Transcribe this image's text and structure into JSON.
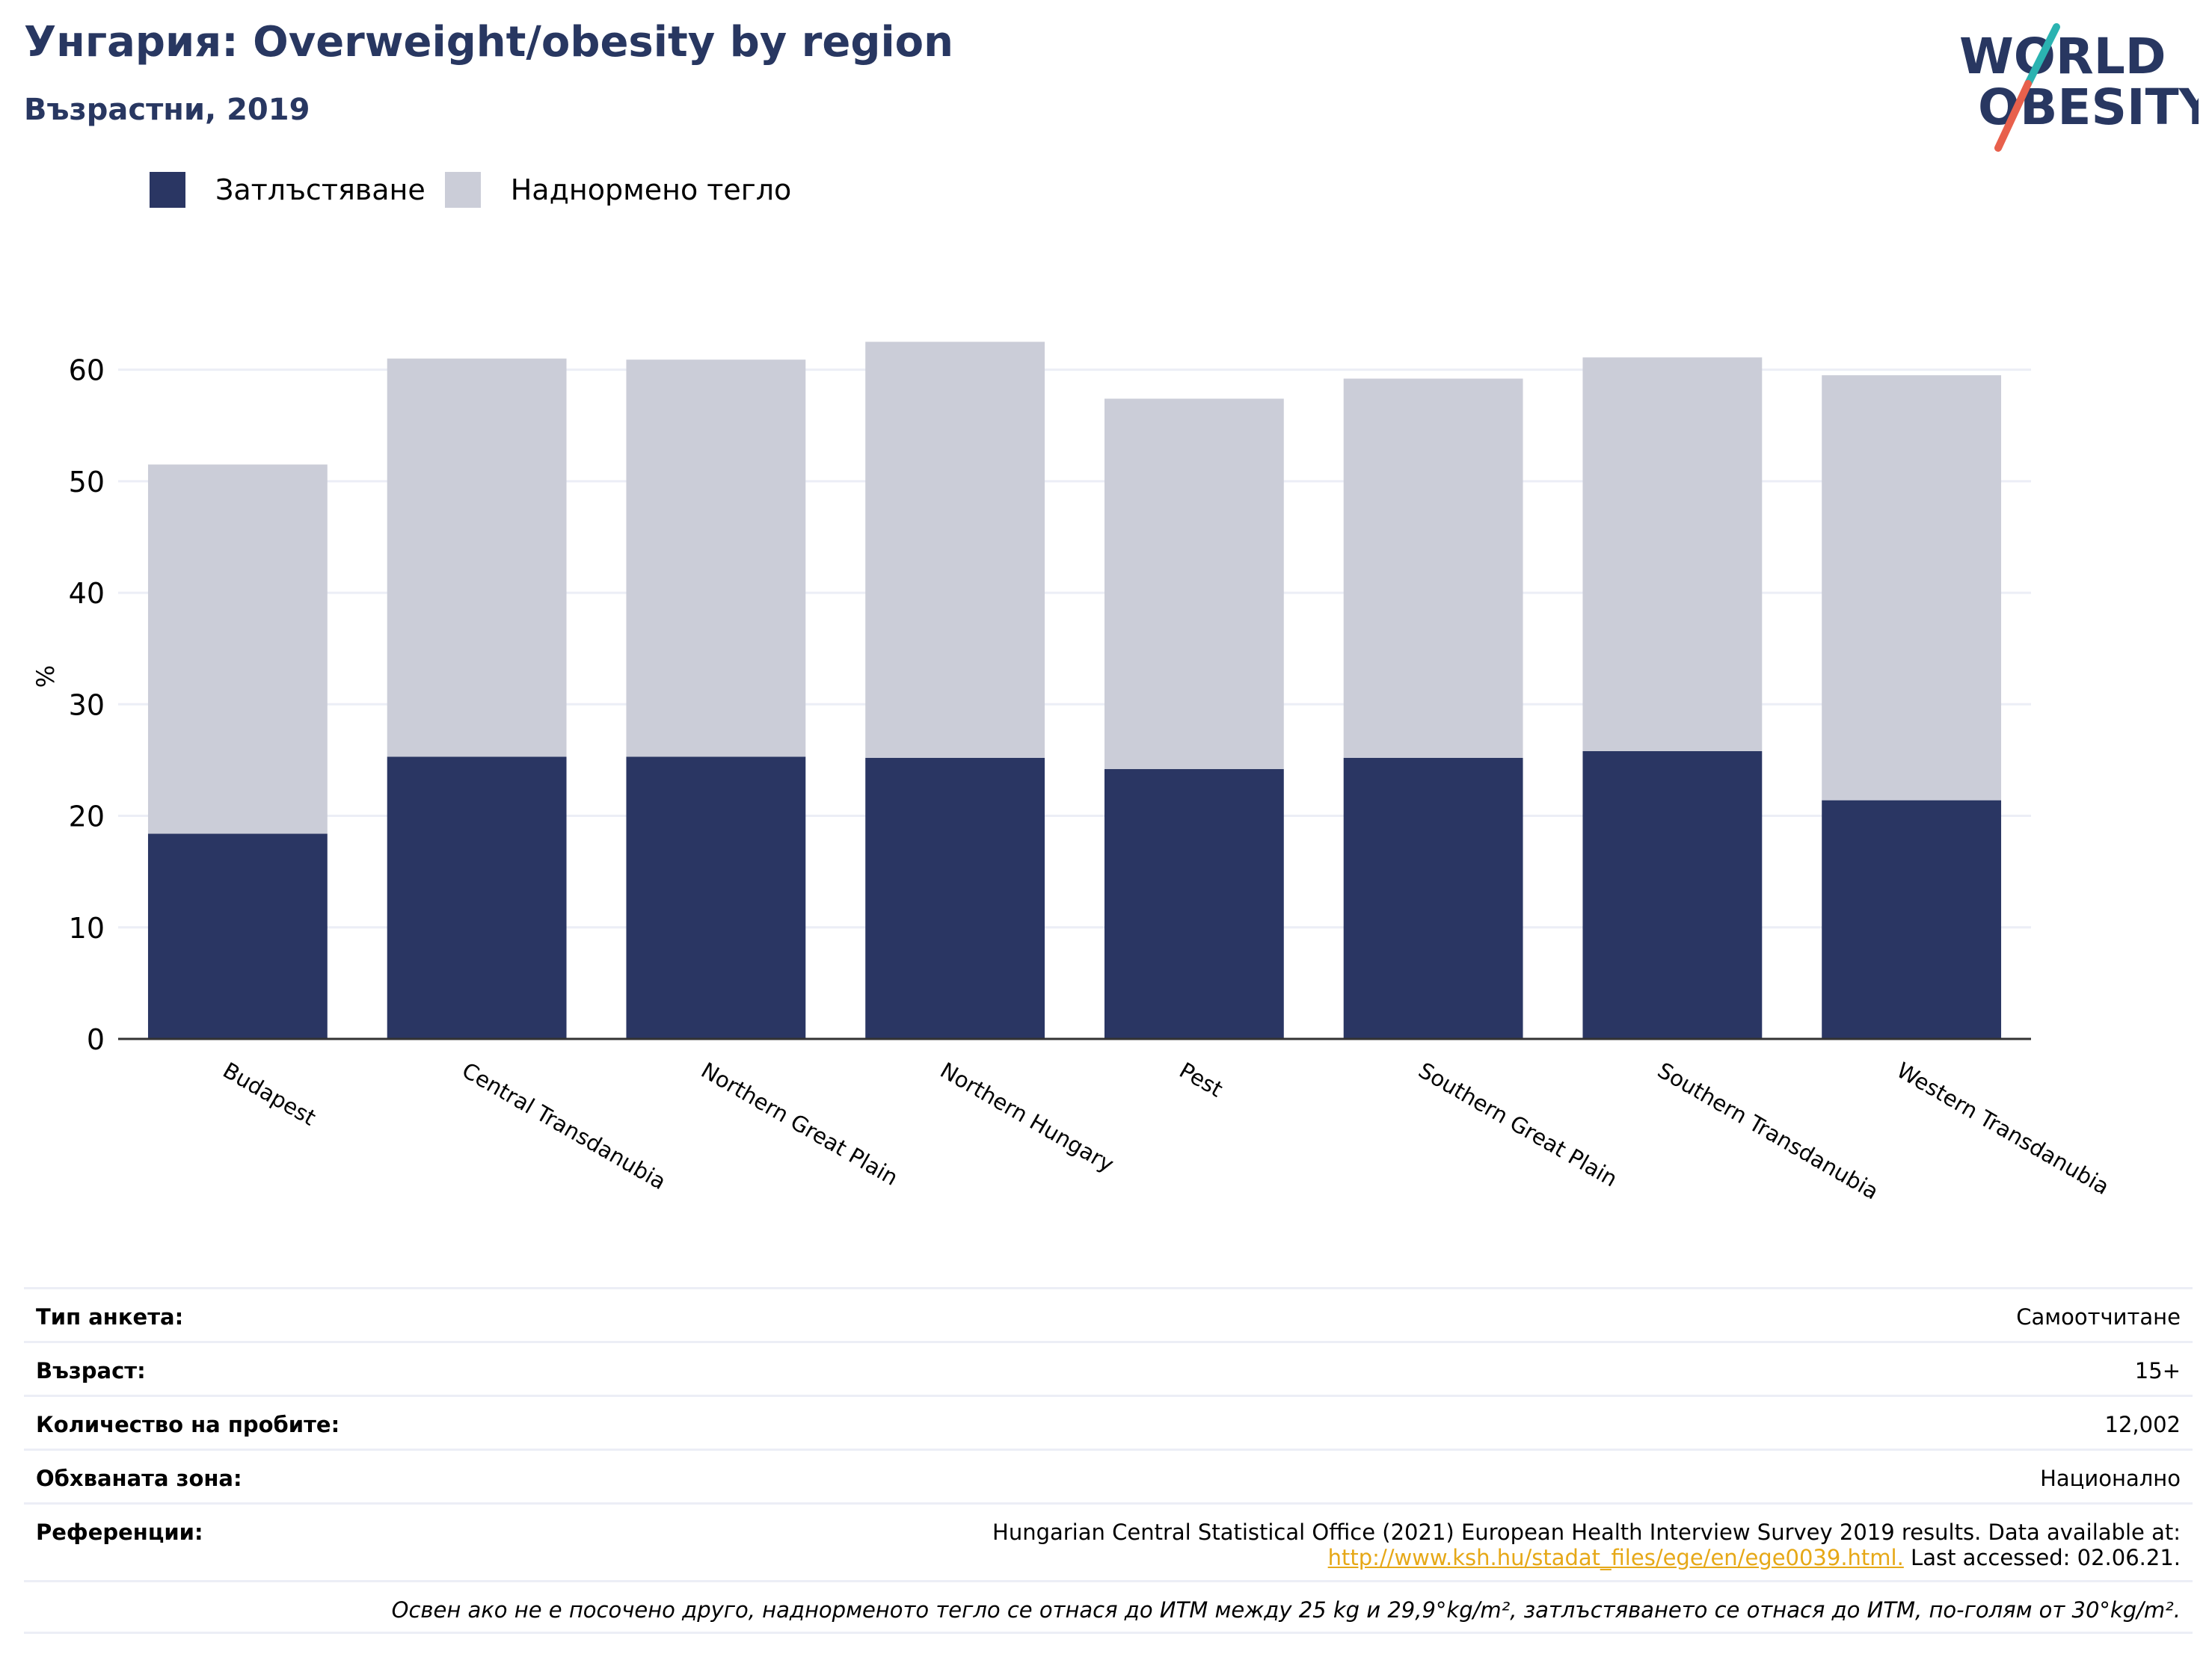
{
  "header": {
    "title": "Унгария: Overweight/obesity by region",
    "subtitle": "Възрастни, 2019"
  },
  "logo": {
    "line1": "WORLD",
    "line2": "OBESITY"
  },
  "colors": {
    "obesity": "#2a3663",
    "overweight": "#cbcdd8",
    "title": "#283761",
    "accent_teal": "#2bb3b1",
    "accent_red": "#e8604c"
  },
  "legend": {
    "obesity": "Затлъстяване",
    "overweight": "Наднормено тегло"
  },
  "chart_data": {
    "type": "bar",
    "stacked": true,
    "categories": [
      "Budapest",
      "Central Transdanubia",
      "Northern Great Plain",
      "Northern Hungary",
      "Pest",
      "Southern Great Plain",
      "Southern Transdanubia",
      "Western Transdanubia"
    ],
    "series": [
      {
        "name": "Затлъстяване",
        "values": [
          18.4,
          25.3,
          25.3,
          25.2,
          24.2,
          25.2,
          25.8,
          21.4
        ]
      },
      {
        "name": "Наднормено тегло",
        "values": [
          33.1,
          35.7,
          35.6,
          37.3,
          33.2,
          34.0,
          35.3,
          38.1
        ]
      }
    ],
    "ylabel": "%",
    "ylim": [
      0,
      65
    ],
    "yticks": [
      0,
      10,
      20,
      30,
      40,
      50,
      60
    ],
    "grid": true,
    "legend_position": "top-left"
  },
  "info": {
    "survey_type_label": "Тип анкета:",
    "survey_type": "Самоотчитане",
    "age_label": "Възраст:",
    "age": "15+",
    "sample_label": "Количество на пробите:",
    "sample": "12,002",
    "area_label": "Обхваната зона:",
    "area": "Национално",
    "refs_label": "Референции:",
    "refs_text": "Hungarian Central Statistical Office (2021) European Health Interview Survey 2019 results. Data available at:",
    "refs_link": "http://www.ksh.hu/stadat_files/ege/en/ege0039.html.",
    "refs_accessed": "Last accessed: 02.06.21.",
    "note": "Освен ако не е посочено друго, наднорменото тегло се отнася до ИТМ между 25 kg и 29,9°kg/m², затлъстяването се отнася до ИТМ, по-голям от 30°kg/m²."
  }
}
